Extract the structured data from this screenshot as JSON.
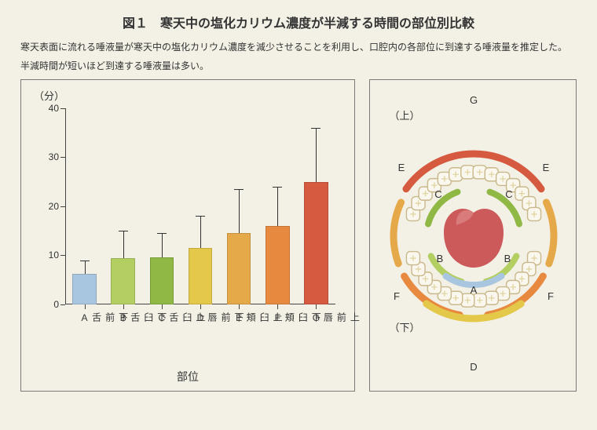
{
  "figure_label": "図１　寒天中の塩化カリウム濃度が半減する時間の部位別比較",
  "title_fontsize": 16,
  "description_line1": "寒天表面に流れる唾液量が寒天中の塩化カリウム濃度を減少させることを利用し、口腔内の各部位に到達する唾液量を推定した。",
  "description_line2": "半減時間が短いほど到達する唾液量は多い。",
  "desc_fontsize": 12,
  "background_color": "#f3f0e5",
  "panel_border_color": "#7a7a7a",
  "chart": {
    "type": "bar",
    "y_axis_label": "（分）",
    "x_axis_label": "部位",
    "ylim": [
      0,
      40
    ],
    "ytick_step": 10,
    "yticks": [
      0,
      10,
      20,
      30,
      40
    ],
    "axis_color": "#444444",
    "label_fontsize": 12,
    "bar_width": 0.62,
    "error_bar_color": "#333333",
    "categories": [
      {
        "label": "下前舌 A",
        "value": 6.2,
        "err_upper": 9.0,
        "color": "#a9c6e0"
      },
      {
        "label": "下臼舌 B",
        "value": 9.4,
        "err_upper": 15.0,
        "color": "#b3cf62"
      },
      {
        "label": "上臼舌 C",
        "value": 9.6,
        "err_upper": 14.5,
        "color": "#8fb845"
      },
      {
        "label": "下前唇 D",
        "value": 11.5,
        "err_upper": 18.0,
        "color": "#e3c84a"
      },
      {
        "label": "上臼頬 E",
        "value": 14.5,
        "err_upper": 23.5,
        "color": "#e6a94a"
      },
      {
        "label": "下臼頬 F",
        "value": 16.0,
        "err_upper": 24.0,
        "color": "#e78a3f"
      },
      {
        "label": "上前唇 G",
        "value": 25.0,
        "err_upper": 36.0,
        "color": "#d65a3f"
      }
    ]
  },
  "diagram": {
    "type": "infographic",
    "upper_label": "（上）",
    "lower_label": "（下）",
    "tooth_outline_color": "#c9b88a",
    "tooth_fill_color": "#faf7ee",
    "tooth_plus_color": "#e0d4a0",
    "tongue_color": "#cd5a5b",
    "tongue_light": "#d97a7b",
    "regions": {
      "A": {
        "label": "A",
        "color": "#a9c6e0"
      },
      "B": {
        "label": "B",
        "color": "#b3cf62"
      },
      "C": {
        "label": "C",
        "color": "#8fb845"
      },
      "D": {
        "label": "D",
        "color": "#e3c84a"
      },
      "E": {
        "label": "E",
        "color": "#e6a94a"
      },
      "F": {
        "label": "F",
        "color": "#e78a3f"
      },
      "G": {
        "label": "G",
        "color": "#d65a3f"
      }
    }
  }
}
